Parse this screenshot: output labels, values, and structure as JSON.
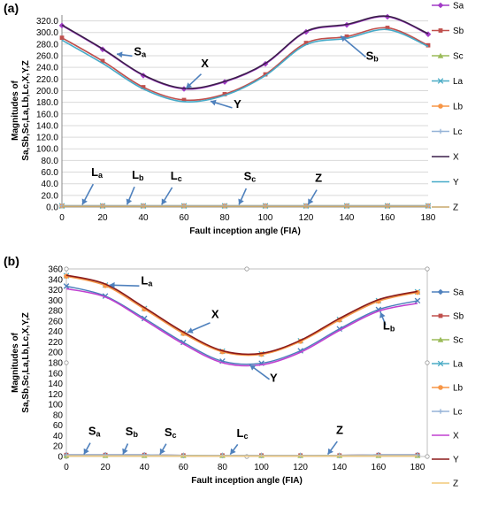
{
  "chart_data": [
    {
      "panel_label": "(a)",
      "type": "line",
      "xlabel": "Fault inception angle (FIA)",
      "ylabel": "Magnitudes of Sa,Sb,Sc,La,Lb,Lc,X,Y,Z",
      "x": [
        0,
        20,
        40,
        60,
        80,
        100,
        120,
        140,
        160,
        180
      ],
      "xlim": [
        0,
        180
      ],
      "xticks": [
        0,
        20,
        40,
        60,
        80,
        100,
        120,
        140,
        160,
        180
      ],
      "ylim": [
        0,
        330
      ],
      "yticks": [
        "0.0",
        "20.0",
        "40.0",
        "60.0",
        "80.0",
        "100.0",
        "120.0",
        "140.0",
        "160.0",
        "180.0",
        "200.0",
        "220.0",
        "240.0",
        "260.0",
        "280.0",
        "300.0",
        "320.0"
      ],
      "grid": true,
      "legend_position": "right",
      "series": [
        {
          "name": "Sa",
          "color": "#a23bc7",
          "marker": "diamond",
          "values": [
            312,
            271,
            226,
            203,
            215,
            246,
            301,
            313,
            327,
            297
          ]
        },
        {
          "name": "Sb",
          "color": "#c0504d",
          "marker": "square",
          "values": [
            291,
            251,
            206,
            184,
            194,
            228,
            282,
            293,
            308,
            278
          ]
        },
        {
          "name": "Sc",
          "color": "#9bbb59",
          "marker": "triangle",
          "values": [
            2,
            2,
            2,
            2,
            2,
            2,
            2,
            2,
            2,
            2
          ]
        },
        {
          "name": "La",
          "color": "#4bacc6",
          "marker": "x",
          "values": [
            2,
            2,
            2,
            2,
            2,
            2,
            2,
            2,
            2,
            2
          ]
        },
        {
          "name": "Lb",
          "color": "#f79646",
          "marker": "circle",
          "values": [
            2,
            2,
            2,
            2,
            2,
            2,
            2,
            2,
            2,
            2
          ]
        },
        {
          "name": "Lc",
          "color": "#95b3d7",
          "marker": "plus",
          "values": [
            2,
            2,
            2,
            2,
            2,
            2,
            2,
            2,
            2,
            2
          ]
        },
        {
          "name": "X",
          "color": "#3b1f4a",
          "marker": "none",
          "values": [
            313,
            272,
            227,
            204,
            216,
            247,
            302,
            314,
            328,
            298
          ]
        },
        {
          "name": "Y",
          "color": "#46aac8",
          "marker": "none",
          "values": [
            287,
            247,
            203,
            181,
            192,
            226,
            279,
            290,
            305,
            276
          ]
        },
        {
          "name": "Z",
          "color": "#c9a86b",
          "marker": "none",
          "values": [
            1,
            1,
            1,
            1,
            1,
            1,
            1,
            1,
            1,
            1
          ]
        }
      ],
      "annotations": [
        {
          "letter": "S",
          "sub": "a",
          "x": 38,
          "y": 258,
          "to_x": 27,
          "to_y": 263
        },
        {
          "letter": "X",
          "x": 71,
          "y": 237,
          "to_x": 61,
          "to_y": 204
        },
        {
          "letter": "Y",
          "x": 87,
          "y": 167,
          "to_x": 73,
          "to_y": 182
        },
        {
          "letter": "S",
          "sub": "b",
          "x": 152,
          "y": 250,
          "to_x": 137,
          "to_y": 294
        },
        {
          "letter": "L",
          "sub": "a",
          "x": 17,
          "y": 50,
          "to_x": 10,
          "to_y": 4
        },
        {
          "letter": "L",
          "sub": "b",
          "x": 37,
          "y": 46,
          "to_x": 32,
          "to_y": 4
        },
        {
          "letter": "L",
          "sub": "c",
          "x": 56,
          "y": 44,
          "to_x": 49,
          "to_y": 4
        },
        {
          "letter": "S",
          "sub": "c",
          "x": 92,
          "y": 43,
          "to_x": 87,
          "to_y": 4
        },
        {
          "letter": "Z",
          "x": 127,
          "y": 40,
          "to_x": 121,
          "to_y": 4
        }
      ]
    },
    {
      "panel_label": "(b)",
      "type": "line",
      "xlabel": "Fault inception angle (FIA)",
      "ylabel": "Magnitudes of Sa,Sb,Sc,La,Lb,Lc,X,Y,Z",
      "x": [
        0,
        20,
        40,
        60,
        80,
        100,
        120,
        140,
        160,
        180
      ],
      "xlim": [
        0,
        185
      ],
      "xticks": [
        0,
        20,
        40,
        60,
        80,
        100,
        120,
        140,
        160,
        180
      ],
      "ylim": [
        0,
        360
      ],
      "yticks": [
        "0",
        "20",
        "40",
        "60",
        "80",
        "100",
        "120",
        "140",
        "160",
        "180",
        "200",
        "220",
        "240",
        "260",
        "280",
        "300",
        "320",
        "340",
        "360"
      ],
      "grid": false,
      "legend_position": "right",
      "series": [
        {
          "name": "Sa",
          "color": "#4f81bd",
          "marker": "diamond",
          "values": [
            3,
            3,
            3,
            2,
            2,
            2,
            2,
            2,
            3,
            3
          ]
        },
        {
          "name": "Sb",
          "color": "#c0504d",
          "marker": "square",
          "values": [
            3,
            3,
            3,
            2,
            2,
            2,
            2,
            2,
            3,
            3
          ]
        },
        {
          "name": "Sc",
          "color": "#9bbb59",
          "marker": "triangle",
          "values": [
            2,
            2,
            2,
            2,
            2,
            2,
            2,
            2,
            2,
            2
          ]
        },
        {
          "name": "La",
          "color": "#4bacc6",
          "marker": "x",
          "values": [
            347,
            329,
            284,
            237,
            202,
            197,
            222,
            263,
            299,
            316
          ]
        },
        {
          "name": "Lb",
          "color": "#f79646",
          "marker": "circle",
          "values": [
            346,
            328,
            283,
            236,
            201,
            196,
            221,
            262,
            298,
            315
          ]
        },
        {
          "name": "Lc",
          "color": "#95b3d7",
          "marker": "plus",
          "values": [
            3,
            3,
            3,
            2,
            2,
            2,
            2,
            2,
            3,
            3
          ]
        },
        {
          "name": "X",
          "color": "#c040d0",
          "marker": "none",
          "values": [
            322,
            306,
            262,
            216,
            180,
            176,
            200,
            242,
            279,
            294
          ]
        },
        {
          "name": "Y",
          "color": "#8b1a1a",
          "marker": "none",
          "values": [
            348,
            331,
            286,
            239,
            203,
            198,
            223,
            265,
            301,
            317
          ]
        },
        {
          "name": "Z",
          "color": "#f2c879",
          "marker": "none",
          "values": [
            1,
            1,
            1,
            1,
            1,
            1,
            1,
            1,
            1,
            1
          ]
        }
      ],
      "extra_series_overlay": {
        "color": "#4a7ebb",
        "values": [
          327,
          308,
          265,
          219,
          183,
          179,
          203,
          245,
          282,
          299
        ]
      },
      "annotations": [
        {
          "letter": "L",
          "sub": "a",
          "x": 41,
          "y": 327,
          "to_x": 22,
          "to_y": 329
        },
        {
          "letter": "X",
          "x": 77,
          "y": 262,
          "to_x": 62,
          "to_y": 238
        },
        {
          "letter": "Y",
          "x": 107,
          "y": 140,
          "to_x": 94,
          "to_y": 176
        },
        {
          "letter": "L",
          "sub": "b",
          "x": 165,
          "y": 240,
          "to_x": 161,
          "to_y": 277
        },
        {
          "letter": "S",
          "sub": "a",
          "x": 14,
          "y": 38,
          "to_x": 9,
          "to_y": 4
        },
        {
          "letter": "S",
          "sub": "b",
          "x": 33,
          "y": 37,
          "to_x": 29,
          "to_y": 4
        },
        {
          "letter": "S",
          "sub": "c",
          "x": 53,
          "y": 36,
          "to_x": 48,
          "to_y": 4
        },
        {
          "letter": "L",
          "sub": "c",
          "x": 90,
          "y": 34,
          "to_x": 84,
          "to_y": 4
        },
        {
          "letter": "Z",
          "x": 141,
          "y": 40,
          "to_x": 134,
          "to_y": 4
        }
      ]
    }
  ]
}
